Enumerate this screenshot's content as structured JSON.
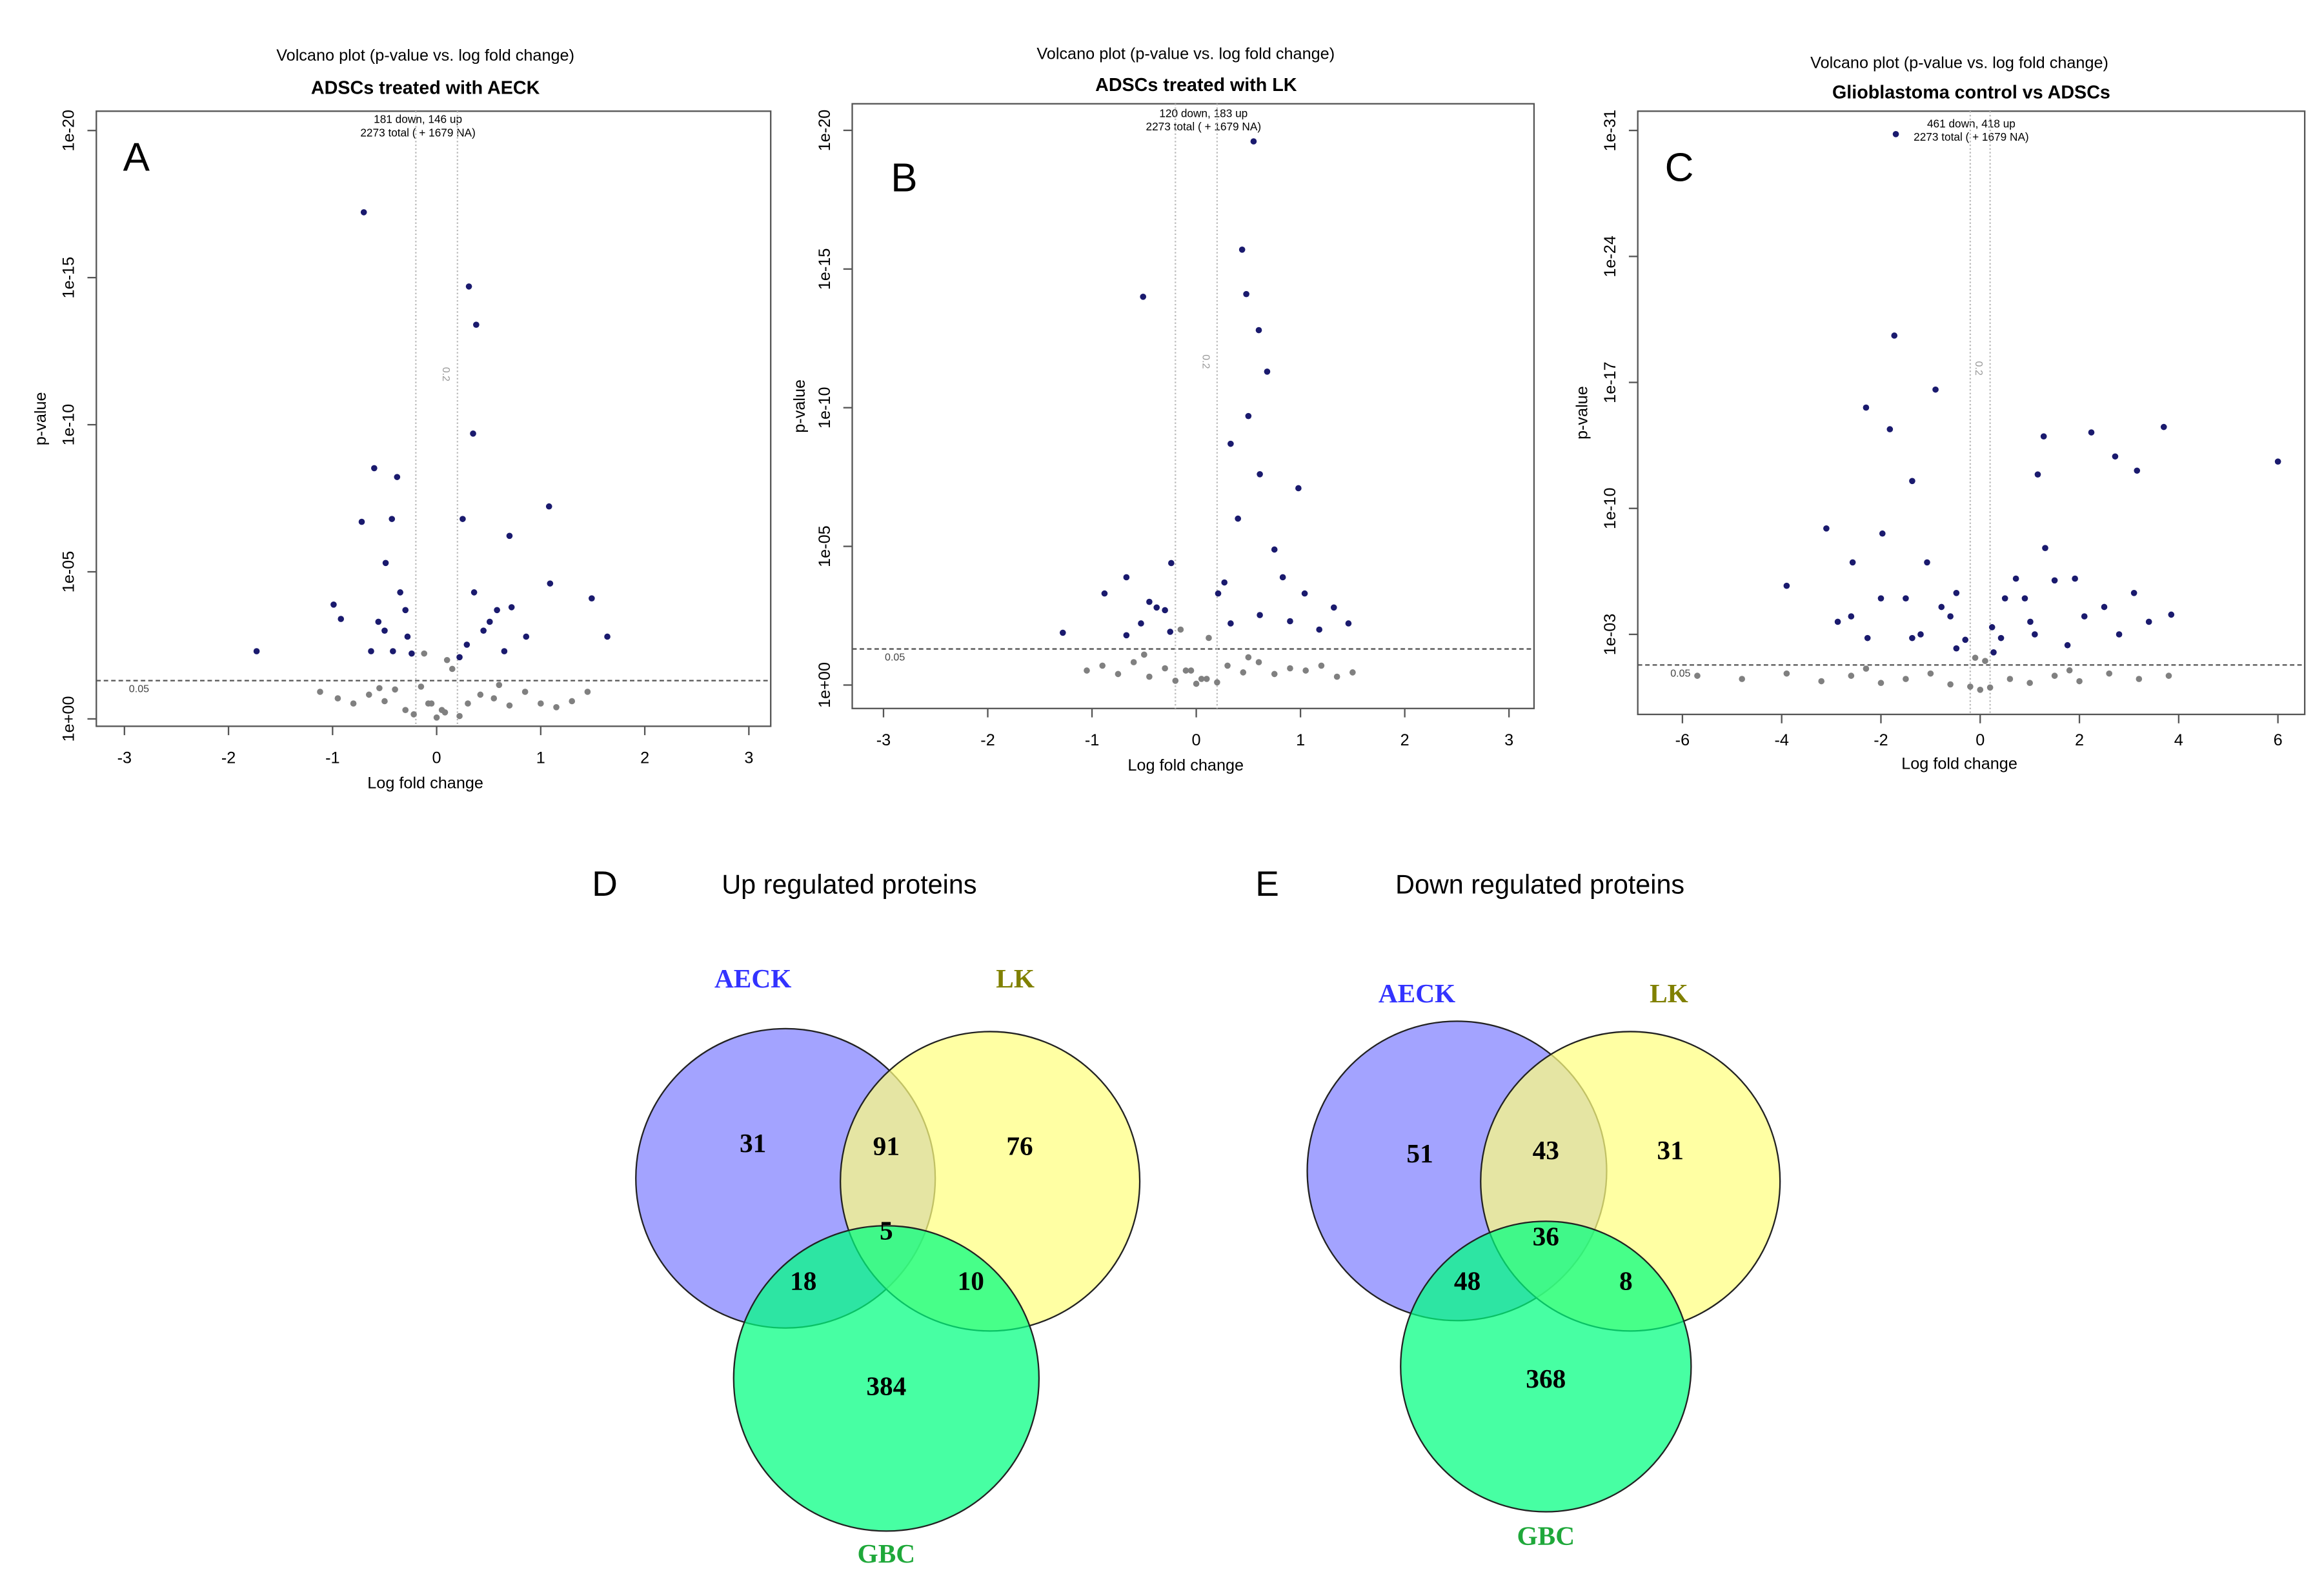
{
  "chart_data": [
    {
      "type": "scatter",
      "subtitle": "Volcano plot (p-value vs. log fold change)",
      "title": "ADSCs treated with AECK",
      "annotations": [
        "181 down,  146 up",
        "2273 total ( + 1679 NA)"
      ],
      "panel": "A",
      "x_label": "Log fold change",
      "y_label": "p-value",
      "ylog": true,
      "xlim": [
        -3.27,
        3.21
      ],
      "ylim": [
        1.78,
        2.2e-21
      ],
      "xticks": [
        -3,
        -2,
        -1,
        0,
        1,
        2,
        3
      ],
      "yticks": [
        {
          "value": 1,
          "label": "1e+00"
        },
        {
          "value": 1e-05,
          "label": "1e-05"
        },
        {
          "value": 1e-10,
          "label": "1e-10"
        },
        {
          "value": 1e-15,
          "label": "1e-15"
        },
        {
          "value": 1e-20,
          "label": "1e-20"
        }
      ],
      "p_threshold": 0.05,
      "fc_threshold": 0.2,
      "series": [
        {
          "color": "#1a1a6e",
          "x": [
            -0.7,
            0.31,
            0.38,
            0.35,
            -0.6,
            -0.38,
            1.08,
            0.7,
            -0.72,
            -0.43,
            0.25,
            1.49,
            1.09,
            1.64,
            -0.99,
            -0.92,
            -0.49,
            -0.35,
            -0.56,
            -0.28,
            -0.42,
            0.36,
            0.51,
            0.72,
            0.86,
            0.29,
            0.65,
            -0.63,
            -0.24,
            0.22,
            -1.73,
            -0.3,
            0.45,
            -0.5,
            0.58
          ],
          "values": [
            6e-18,
            2e-15,
            4e-14,
            2e-10,
            3e-09,
            6e-09,
            6e-08,
            6e-07,
            2e-07,
            1.6e-07,
            1.6e-07,
            8e-05,
            2.5e-05,
            0.0016,
            0.00013,
            0.0004,
            5e-06,
            5e-05,
            0.0005,
            0.0016,
            0.005,
            5e-05,
            0.0005,
            0.00016,
            0.0016,
            0.003,
            0.005,
            0.005,
            0.006,
            0.008,
            0.005,
            0.0002,
            0.001,
            0.001,
            0.0002
          ]
        },
        {
          "color": "#808080",
          "x": [
            -1.12,
            -0.95,
            -0.8,
            -0.65,
            -0.5,
            -0.4,
            -0.3,
            -0.22,
            -0.15,
            -0.08,
            0,
            0.08,
            0.15,
            0.22,
            0.3,
            0.42,
            0.55,
            0.7,
            0.85,
            1.0,
            1.15,
            1.3,
            1.45,
            -0.12,
            0.1,
            -0.05,
            0.05,
            -0.55,
            0.6
          ],
          "values": [
            0.12,
            0.2,
            0.3,
            0.15,
            0.25,
            0.1,
            0.5,
            0.7,
            0.08,
            0.3,
            0.9,
            0.6,
            0.02,
            0.8,
            0.3,
            0.15,
            0.2,
            0.35,
            0.12,
            0.3,
            0.4,
            0.25,
            0.12,
            0.006,
            0.01,
            0.3,
            0.5,
            0.09,
            0.07
          ]
        }
      ]
    },
    {
      "type": "scatter",
      "subtitle": "Volcano plot (p-value vs. log fold change)",
      "title": "ADSCs treated with LK",
      "annotations": [
        "120 down,  183 up",
        "2273 total ( + 1679 NA)"
      ],
      "panel": "B",
      "x_label": "Log fold change",
      "y_label": "p-value",
      "ylog": true,
      "xlim": [
        -3.3,
        3.24
      ],
      "ylim": [
        7,
        1.1e-21
      ],
      "xticks": [
        -3,
        -2,
        -1,
        0,
        1,
        2,
        3
      ],
      "yticks": [
        {
          "value": 1,
          "label": "1e+00"
        },
        {
          "value": 1e-05,
          "label": "1e-05"
        },
        {
          "value": 1e-10,
          "label": "1e-10"
        },
        {
          "value": 1e-15,
          "label": "1e-15"
        },
        {
          "value": 1e-20,
          "label": "1e-20"
        }
      ],
      "p_threshold": 0.05,
      "fc_threshold": 0.2,
      "series": [
        {
          "color": "#1a1a6e",
          "x": [
            0.55,
            0.44,
            -0.51,
            0.48,
            0.6,
            0.68,
            0.5,
            0.33,
            0.98,
            0.61,
            0.4,
            0.75,
            -0.24,
            -0.67,
            -0.88,
            -0.38,
            -0.53,
            1.32,
            1.04,
            0.21,
            0.33,
            0.61,
            -1.28,
            1.18,
            -0.67,
            -0.25,
            0.83,
            1.46,
            -0.45,
            0.27,
            0.9,
            -0.3
          ],
          "values": [
            2.5e-20,
            2e-16,
            1e-14,
            8e-15,
            1.6e-13,
            5e-12,
            2e-10,
            2e-09,
            8e-08,
            2.5e-08,
            1e-06,
            1.3e-05,
            4e-05,
            0.00013,
            0.0005,
            0.0016,
            0.006,
            0.0016,
            0.0005,
            0.0005,
            0.006,
            0.003,
            0.013,
            0.01,
            0.016,
            0.012,
            0.00013,
            0.006,
            0.001,
            0.0002,
            0.005,
            0.002
          ]
        },
        {
          "color": "#808080",
          "x": [
            -1.05,
            -0.9,
            -0.75,
            -0.6,
            -0.45,
            -0.3,
            -0.2,
            -0.1,
            0,
            0.1,
            0.2,
            0.3,
            0.45,
            0.6,
            0.75,
            0.9,
            1.05,
            1.2,
            1.35,
            1.5,
            -0.15,
            0.12,
            -0.05,
            0.05,
            0.5,
            -0.5
          ],
          "values": [
            0.3,
            0.2,
            0.4,
            0.15,
            0.5,
            0.25,
            0.7,
            0.3,
            0.9,
            0.6,
            0.8,
            0.2,
            0.35,
            0.15,
            0.4,
            0.25,
            0.3,
            0.2,
            0.5,
            0.35,
            0.01,
            0.02,
            0.3,
            0.6,
            0.1,
            0.08
          ]
        }
      ]
    },
    {
      "type": "scatter",
      "subtitle": "Volcano plot (p-value vs. log fold change)",
      "title": "Glioblastoma control vs ADSCs",
      "annotations": [
        "461 down,  418 up",
        "2273 total ( + 1679 NA)"
      ],
      "panel": "C",
      "x_label": "Log fold change",
      "y_label": "p-value",
      "ylog": true,
      "xlim": [
        -6.9,
        6.54
      ],
      "ylim": [
        28,
        8.5e-33
      ],
      "xticks": [
        -6,
        -4,
        -2,
        0,
        2,
        4,
        6
      ],
      "yticks": [
        {
          "value": 0.001,
          "label": "1e-03"
        },
        {
          "value": 1e-10,
          "label": "1e-10"
        },
        {
          "value": 1e-17,
          "label": "1e-17"
        },
        {
          "value": 1e-24,
          "label": "1e-24"
        },
        {
          "value": 1e-31,
          "label": "1e-31"
        }
      ],
      "p_threshold": 0.05,
      "fc_threshold": 0.2,
      "series": [
        {
          "color": "#1a1a6e",
          "x": [
            -1.7,
            -1.73,
            -0.9,
            -2.3,
            -1.82,
            2.24,
            3.7,
            1.28,
            2.72,
            6.0,
            3.16,
            -1.37,
            1.16,
            -3.1,
            -3.9,
            3.85,
            -2.57,
            -1.97,
            -1.07,
            -0.48,
            0.72,
            1.31,
            1.91,
            2.5,
            3.1,
            -2.87,
            -2.27,
            -1.37,
            0.42,
            1.01,
            1.76,
            -0.48,
            0.27,
            -0.78,
            0.24,
            -1.5,
            -0.6,
            0.9,
            1.5,
            2.1,
            -2.0,
            -1.2,
            0.5,
            1.1,
            2.8,
            -0.3,
            -2.6,
            3.4
          ],
          "values": [
            1.6e-31,
            2.5e-20,
            2.5e-17,
            2.5e-16,
            4e-15,
            6e-15,
            3e-15,
            1e-14,
            1.3e-13,
            2.5e-13,
            8e-13,
            3e-12,
            1.3e-12,
            1.3e-09,
            2e-06,
            8e-05,
            1e-07,
            2.5e-09,
            1e-07,
            5e-06,
            8e-07,
            1.6e-08,
            8e-07,
            3e-05,
            5e-06,
            0.0002,
            0.0016,
            0.0016,
            0.0016,
            0.0002,
            0.004,
            0.006,
            0.01,
            3e-05,
            0.0004,
            1e-05,
            0.0001,
            1e-05,
            1e-06,
            0.0001,
            1e-05,
            0.001,
            1e-05,
            0.001,
            0.001,
            0.002,
            0.0001,
            0.0002
          ]
        },
        {
          "color": "#808080",
          "x": [
            -5.7,
            -4.8,
            -3.9,
            -3.2,
            -2.6,
            -2.0,
            -1.5,
            -1.0,
            -0.6,
            -0.2,
            0,
            0.2,
            0.6,
            1.0,
            1.5,
            2.0,
            2.6,
            3.2,
            3.8,
            -0.1,
            0.1,
            -2.3,
            1.8
          ],
          "values": [
            0.2,
            0.3,
            0.15,
            0.4,
            0.2,
            0.5,
            0.3,
            0.15,
            0.6,
            0.8,
            1.2,
            0.9,
            0.3,
            0.5,
            0.2,
            0.4,
            0.15,
            0.3,
            0.2,
            0.02,
            0.03,
            0.08,
            0.1
          ]
        }
      ]
    },
    {
      "type": "venn",
      "panel": "D",
      "title": "Up regulated proteins",
      "sets": [
        {
          "name": "AECK",
          "color": "#8080ff",
          "label_color": "#3333ff"
        },
        {
          "name": "LK",
          "color": "#ffff80",
          "label_color": "#808000"
        },
        {
          "name": "GBC",
          "color": "#00ff80",
          "label_color": "#1fa83a"
        }
      ],
      "regions": {
        "AECK": 31,
        "LK": 76,
        "GBC": 384,
        "AECK_LK": 91,
        "AECK_GBC": 18,
        "LK_GBC": 10,
        "AECK_LK_GBC": 5
      }
    },
    {
      "type": "venn",
      "panel": "E",
      "title": "Down regulated proteins",
      "sets": [
        {
          "name": "AECK",
          "color": "#8080ff",
          "label_color": "#3333ff"
        },
        {
          "name": "LK",
          "color": "#ffff80",
          "label_color": "#808000"
        },
        {
          "name": "GBC",
          "color": "#00ff80",
          "label_color": "#1fa83a"
        }
      ],
      "regions": {
        "AECK": 51,
        "LK": 31,
        "GBC": 368,
        "AECK_LK": 43,
        "AECK_GBC": 48,
        "LK_GBC": 8,
        "AECK_LK_GBC": 36
      }
    }
  ]
}
